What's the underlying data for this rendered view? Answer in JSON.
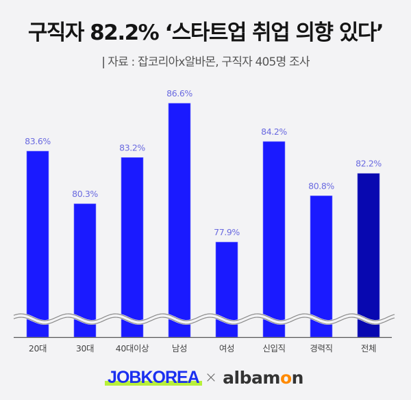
{
  "header": {
    "title": "구직자 82.2% ‘스타트업 취업 의향 있다’",
    "subtitle_sep": "|",
    "subtitle": "자료 : 잡코리아x알바몬,  구직자 405명 조사"
  },
  "colors": {
    "background": "#f3f3f5",
    "bar": "#1a1aff",
    "bar_total": "#0808b0",
    "value_label": "#6a6ae0",
    "axis": "#555555",
    "wave": "#888888"
  },
  "chart_data": {
    "type": "bar",
    "title": "구직자 82.2% ‘스타트업 취업 의향 있다’",
    "subtitle": "자료 : 잡코리아x알바몬, 구직자 405명 조사",
    "xlabel": "",
    "ylabel": "",
    "unit": "%",
    "categories": [
      "20대",
      "30대",
      "40대이상",
      "남성",
      "여성",
      "신입직",
      "경력직",
      "전체"
    ],
    "values": [
      83.6,
      80.3,
      83.2,
      86.6,
      77.9,
      84.2,
      80.8,
      82.2
    ],
    "value_labels": [
      "83.6%",
      "80.3%",
      "83.2%",
      "86.6%",
      "77.9%",
      "84.2%",
      "80.8%",
      "82.2%"
    ],
    "highlight_category": "전체",
    "axis_break": true,
    "grid": false,
    "legend": null
  },
  "footer": {
    "brand_left": "JOBKOREA",
    "times": "×",
    "brand_right_prefix": "albam",
    "brand_right_cat": "o",
    "brand_right_suffix": "n"
  }
}
